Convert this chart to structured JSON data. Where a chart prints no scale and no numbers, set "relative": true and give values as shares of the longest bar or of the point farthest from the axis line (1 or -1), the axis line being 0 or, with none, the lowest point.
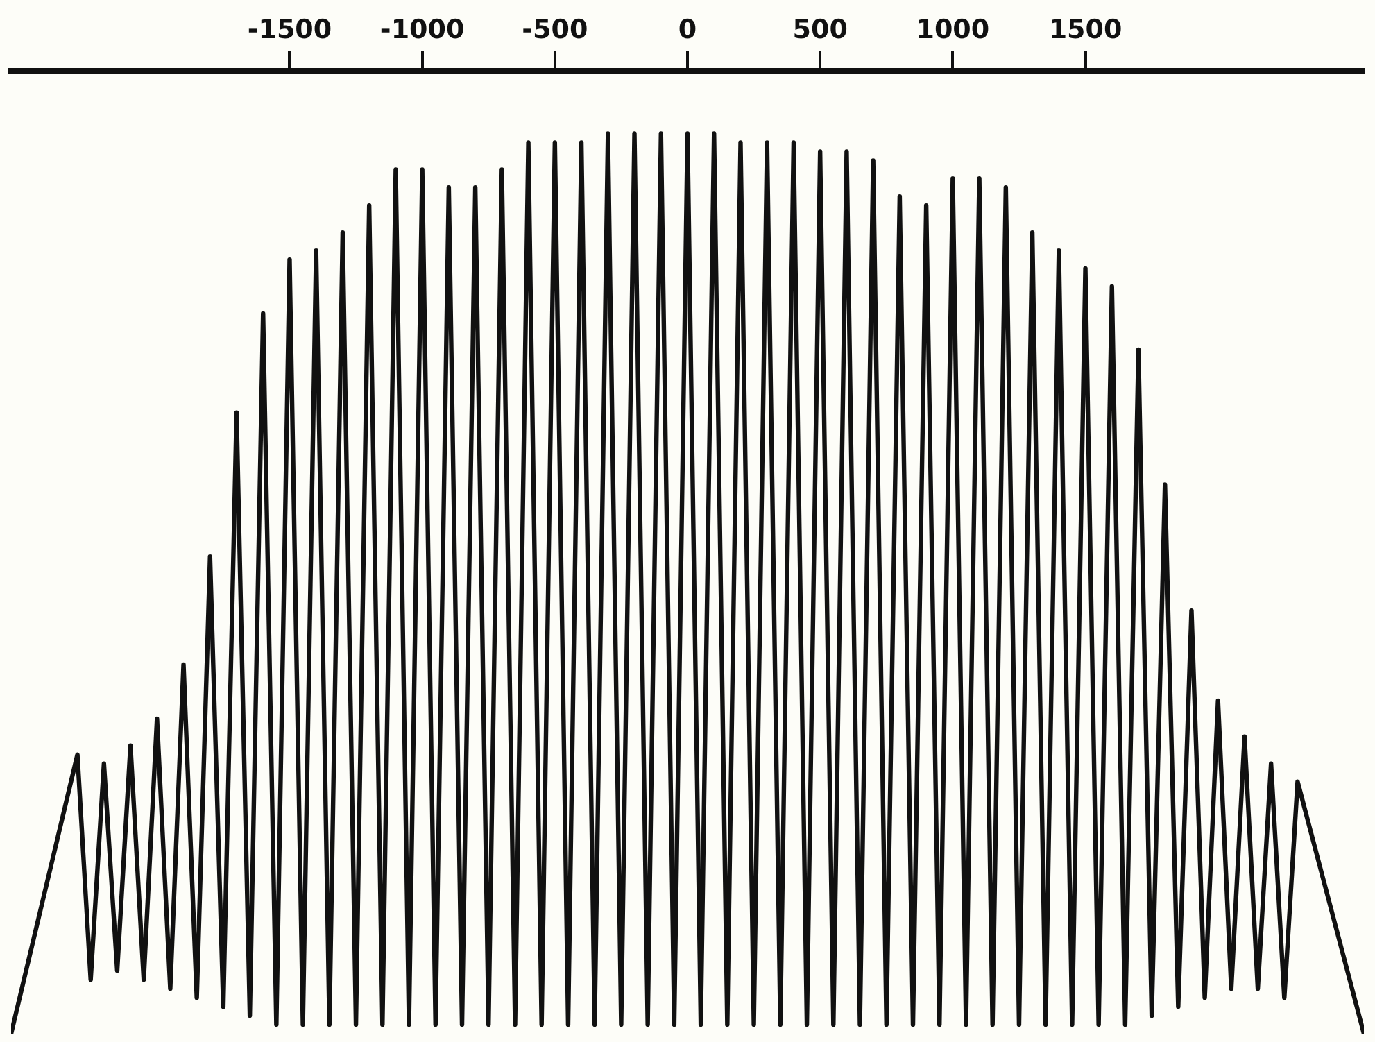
{
  "chart_data": {
    "type": "line",
    "relative": true,
    "xlim": [
      -2550,
      2550
    ],
    "xticks": [
      -1500,
      -1000,
      -500,
      0,
      500,
      1000,
      1500
    ],
    "tick_labels": "x",
    "grid": false,
    "legend": false,
    "marker": "none",
    "line_style": "solid",
    "series": [
      {
        "color": "#111111",
        "x": [
          -2550,
          -2300,
          -2250,
          -2200,
          -2150,
          -2100,
          -2050,
          -2000,
          -1950,
          -1900,
          -1850,
          -1800,
          -1750,
          -1700,
          -1650,
          -1600,
          -1550,
          -1500,
          -1450,
          -1400,
          -1350,
          -1300,
          -1250,
          -1200,
          -1150,
          -1100,
          -1050,
          -1000,
          -950,
          -900,
          -850,
          -800,
          -750,
          -700,
          -650,
          -600,
          -550,
          -500,
          -450,
          -400,
          -350,
          -300,
          -250,
          -200,
          -150,
          -100,
          -50,
          0,
          50,
          100,
          150,
          200,
          250,
          300,
          350,
          400,
          450,
          500,
          550,
          600,
          650,
          700,
          750,
          800,
          850,
          900,
          950,
          1000,
          1050,
          1100,
          1150,
          1200,
          1250,
          1300,
          1350,
          1400,
          1450,
          1500,
          1550,
          1600,
          1650,
          1700,
          1750,
          1800,
          1850,
          1900,
          1950,
          2000,
          2050,
          2100,
          2150,
          2200,
          2250,
          2300,
          2550
        ],
        "values": [
          0,
          0.31,
          0.06,
          0.3,
          0.07,
          0.32,
          0.06,
          0.35,
          0.05,
          0.41,
          0.04,
          0.53,
          0.03,
          0.69,
          0.02,
          0.8,
          0.01,
          0.86,
          0.01,
          0.87,
          0.01,
          0.89,
          0.01,
          0.92,
          0.01,
          0.96,
          0.01,
          0.96,
          0.01,
          0.94,
          0.01,
          0.94,
          0.01,
          0.96,
          0.01,
          0.99,
          0.01,
          0.99,
          0.01,
          0.99,
          0.01,
          1,
          0.01,
          1,
          0.01,
          1,
          0.01,
          1,
          0.01,
          1,
          0.01,
          0.99,
          0.01,
          0.99,
          0.01,
          0.99,
          0.01,
          0.98,
          0.01,
          0.98,
          0.01,
          0.97,
          0.01,
          0.93,
          0.01,
          0.92,
          0.01,
          0.95,
          0.01,
          0.95,
          0.01,
          0.94,
          0.01,
          0.89,
          0.01,
          0.87,
          0.01,
          0.85,
          0.01,
          0.83,
          0.01,
          0.76,
          0.02,
          0.61,
          0.03,
          0.47,
          0.04,
          0.37,
          0.05,
          0.33,
          0.05,
          0.3,
          0.04,
          0.28,
          0
        ]
      }
    ]
  }
}
